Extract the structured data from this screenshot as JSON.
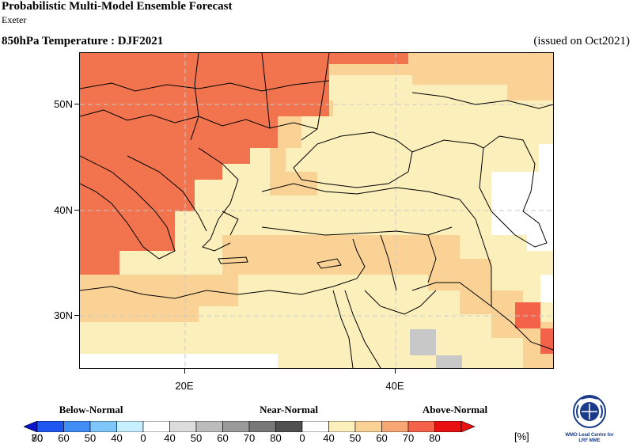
{
  "header": {
    "title": "Probabilistic Multi-Model Ensemble Forecast",
    "subtitle": "Exeter",
    "map_title": "850hPa Temperature : DJF2021",
    "issued": "(issued on Oct2021)"
  },
  "axes": {
    "lat_labels": [
      "50N",
      "40N",
      "30N"
    ],
    "lon_labels": [
      "20E",
      "40E"
    ]
  },
  "legend": {
    "categories": [
      "Below-Normal",
      "Near-Normal",
      "Above-Normal"
    ],
    "below_numbers": [
      "80",
      "70",
      "60",
      "50",
      "40"
    ],
    "near_numbers": [
      "0",
      "40",
      "50",
      "60",
      "70",
      "80"
    ],
    "above_numbers": [
      "0",
      "40",
      "50",
      "60",
      "70",
      "80"
    ],
    "unit": "[%]",
    "below_colors": [
      "#0a14cc",
      "#1f55f0",
      "#3f8df5",
      "#7ec6fa",
      "#c6f0ff"
    ],
    "near_colors": [
      "#ffffff",
      "#dcdcdc",
      "#bcbcbc",
      "#9a9a9a",
      "#787878",
      "#505050"
    ],
    "above_colors": [
      "#ffffff",
      "#fbefbc",
      "#fbd296",
      "#f7a773",
      "#f4624a",
      "#e81010"
    ]
  },
  "logo": {
    "line1": "WMO Lead Centre for",
    "line2": "LRF MME"
  }
}
